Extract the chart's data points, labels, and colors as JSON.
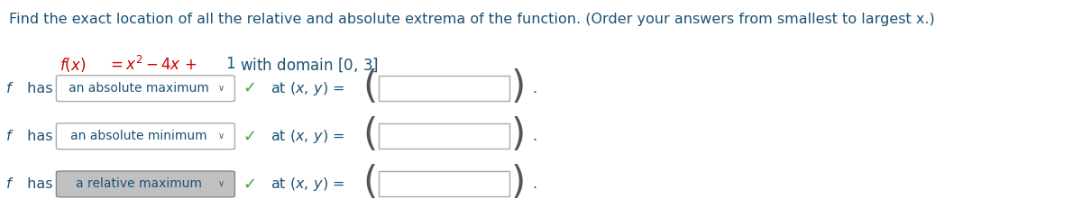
{
  "title_text": "Find the exact location of all the relative and absolute extrema of the function. (Order your answers from smallest to largest x.)",
  "title_color": "#1a5276",
  "title_fontsize": 11.5,
  "rows": [
    {
      "dropdown_text": "an absolute maximum",
      "dropdown_bg": "#ffffff",
      "dropdown_border": "#aaaaaa",
      "checkmark": true
    },
    {
      "dropdown_text": "an absolute minimum",
      "dropdown_bg": "#ffffff",
      "dropdown_border": "#aaaaaa",
      "checkmark": true
    },
    {
      "dropdown_text": "a relative maximum",
      "dropdown_bg": "#c0c0c0",
      "dropdown_border": "#888888",
      "checkmark": true
    }
  ],
  "bg_color": "#ffffff",
  "text_color": "#1a5276",
  "text_color_dark": "#333333",
  "red_color": "#cc0000",
  "blue_color": "#1a5276",
  "green_color": "#33aa33",
  "gray_color": "#777777"
}
